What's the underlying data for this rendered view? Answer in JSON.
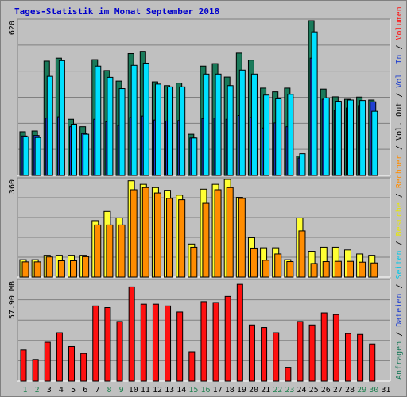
{
  "title": "Tages-Statistik im Monat September 2018",
  "colors": {
    "background": "#c0c0c0",
    "title": "#0000cc",
    "anfragen": "#1a7a5a",
    "dateien": "#2040d0",
    "seiten": "#00e0ff",
    "besuche": "#ffff33",
    "rechner": "#ff8c00",
    "volume": "#ff1010",
    "weekday_tick": "#000000",
    "weekend_tick": "#208050"
  },
  "legend_right": {
    "top": [
      {
        "text": "Anfragen",
        "color": "#1a7a5a"
      },
      {
        "text": " / ",
        "color": "#000000"
      },
      {
        "text": "Dateien",
        "color": "#2040d0"
      },
      {
        "text": " / ",
        "color": "#000000"
      },
      {
        "text": "Seiten",
        "color": "#00c8e8"
      },
      {
        "text": " / ",
        "color": "#000000"
      },
      {
        "text": "Besuche",
        "color": "#e8e800"
      },
      {
        "text": " / ",
        "color": "#000000"
      },
      {
        "text": "Rechner",
        "color": "#ff8c00"
      },
      {
        "text": " / ",
        "color": "#000000"
      },
      {
        "text": "Vol. Out",
        "color": "#000000"
      },
      {
        "text": " / ",
        "color": "#000000"
      },
      {
        "text": "Vol. In",
        "color": "#2040d0"
      },
      {
        "text": " / ",
        "color": "#000000"
      },
      {
        "text": "Volumen",
        "color": "#ff1010"
      }
    ]
  },
  "chart_data": [
    {
      "type": "bar",
      "panel": "anfragen_dateien_seiten",
      "ymax_label": "620",
      "ylim": [
        0,
        620
      ],
      "categories": [
        "1",
        "2",
        "3",
        "4",
        "5",
        "6",
        "7",
        "8",
        "9",
        "10",
        "11",
        "12",
        "13",
        "14",
        "15",
        "16",
        "17",
        "18",
        "19",
        "20",
        "21",
        "22",
        "23",
        "24",
        "25",
        "26",
        "27",
        "28",
        "29",
        "30",
        "31"
      ],
      "weekend": [
        "1",
        "2",
        "8",
        "9",
        "15",
        "16",
        "22",
        "23",
        "29",
        "30"
      ],
      "series": [
        {
          "name": "Anfragen",
          "values": [
            175,
            178,
            458,
            470,
            225,
            195,
            464,
            420,
            378,
            488,
            497,
            375,
            360,
            370,
            165,
            438,
            448,
            394,
            490,
            462,
            350,
            335,
            350,
            77,
            620,
            346,
            315,
            305,
            314,
            302,
            0
          ]
        },
        {
          "name": "Dateien",
          "values": [
            158,
            160,
            230,
            235,
            195,
            168,
            225,
            215,
            200,
            232,
            238,
            222,
            218,
            220,
            150,
            228,
            230,
            225,
            240,
            232,
            190,
            210,
            195,
            70,
            470,
            305,
            260,
            270,
            280,
            295,
            0
          ]
        },
        {
          "name": "Seiten",
          "values": [
            155,
            152,
            397,
            460,
            205,
            165,
            438,
            393,
            348,
            441,
            450,
            366,
            355,
            355,
            150,
            406,
            406,
            360,
            422,
            406,
            322,
            307,
            325,
            87,
            575,
            310,
            297,
            302,
            300,
            257,
            0
          ]
        }
      ]
    },
    {
      "type": "bar",
      "panel": "besuche_rechner",
      "ymax_label": "360",
      "ylim": [
        0,
        360
      ],
      "categories": [
        "1",
        "2",
        "3",
        "4",
        "5",
        "6",
        "7",
        "8",
        "9",
        "10",
        "11",
        "12",
        "13",
        "14",
        "15",
        "16",
        "17",
        "18",
        "19",
        "20",
        "21",
        "22",
        "23",
        "24",
        "25",
        "26",
        "27",
        "28",
        "29",
        "30",
        "31"
      ],
      "series": [
        {
          "name": "Besuche",
          "values": [
            64,
            64,
            80,
            80,
            80,
            80,
            208,
            242,
            218,
            355,
            342,
            330,
            320,
            302,
            122,
            324,
            342,
            360,
            294,
            145,
            108,
            108,
            64,
            218,
            95,
            110,
            110,
            100,
            85,
            80,
            0
          ]
        },
        {
          "name": "Rechner",
          "values": [
            56,
            56,
            74,
            60,
            60,
            75,
            192,
            192,
            192,
            322,
            330,
            310,
            290,
            285,
            110,
            272,
            322,
            330,
            290,
            107,
            62,
            85,
            57,
            170,
            50,
            57,
            58,
            58,
            55,
            52,
            0
          ]
        }
      ]
    },
    {
      "type": "bar",
      "panel": "volumen",
      "ymax_label": "57.90 MB",
      "ylim": [
        0,
        57.9
      ],
      "categories": [
        "1",
        "2",
        "3",
        "4",
        "5",
        "6",
        "7",
        "8",
        "9",
        "10",
        "11",
        "12",
        "13",
        "14",
        "15",
        "16",
        "17",
        "18",
        "19",
        "20",
        "21",
        "22",
        "23",
        "24",
        "25",
        "26",
        "27",
        "28",
        "29",
        "30",
        "31"
      ],
      "series": [
        {
          "name": "Volumen",
          "values": [
            18,
            12.5,
            22.5,
            28,
            20,
            16,
            43.5,
            42.5,
            34.5,
            54.5,
            44.5,
            44.5,
            43.5,
            40,
            17,
            46,
            45.5,
            49,
            56,
            32.5,
            31,
            28,
            8,
            34.5,
            32.5,
            39.5,
            38.5,
            27.5,
            27,
            21.5,
            0
          ]
        }
      ]
    }
  ]
}
